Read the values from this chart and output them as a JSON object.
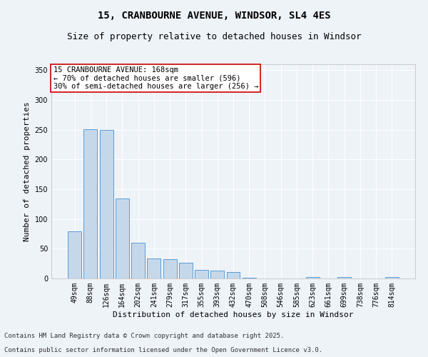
{
  "title_line1": "15, CRANBOURNE AVENUE, WINDSOR, SL4 4ES",
  "title_line2": "Size of property relative to detached houses in Windsor",
  "xlabel": "Distribution of detached houses by size in Windsor",
  "ylabel": "Number of detached properties",
  "categories": [
    "49sqm",
    "88sqm",
    "126sqm",
    "164sqm",
    "202sqm",
    "241sqm",
    "279sqm",
    "317sqm",
    "355sqm",
    "393sqm",
    "432sqm",
    "470sqm",
    "508sqm",
    "546sqm",
    "585sqm",
    "623sqm",
    "661sqm",
    "699sqm",
    "738sqm",
    "776sqm",
    "814sqm"
  ],
  "values": [
    79,
    251,
    250,
    135,
    60,
    34,
    33,
    26,
    14,
    13,
    11,
    1,
    0,
    0,
    0,
    3,
    0,
    2,
    0,
    0,
    2
  ],
  "bar_color": "#c5d8ea",
  "bar_edge_color": "#5b9bd5",
  "annotation_box_text": "15 CRANBOURNE AVENUE: 168sqm\n← 70% of detached houses are smaller (596)\n30% of semi-detached houses are larger (256) →",
  "annotation_box_color": "#cc0000",
  "ylim": [
    0,
    360
  ],
  "yticks": [
    0,
    50,
    100,
    150,
    200,
    250,
    300,
    350
  ],
  "background_color": "#eef3f8",
  "grid_color": "#ffffff",
  "footer_line1": "Contains HM Land Registry data © Crown copyright and database right 2025.",
  "footer_line2": "Contains public sector information licensed under the Open Government Licence v3.0.",
  "title_fontsize": 10,
  "subtitle_fontsize": 9,
  "axis_label_fontsize": 8,
  "tick_fontsize": 7,
  "annotation_fontsize": 7.5,
  "footer_fontsize": 6.5
}
